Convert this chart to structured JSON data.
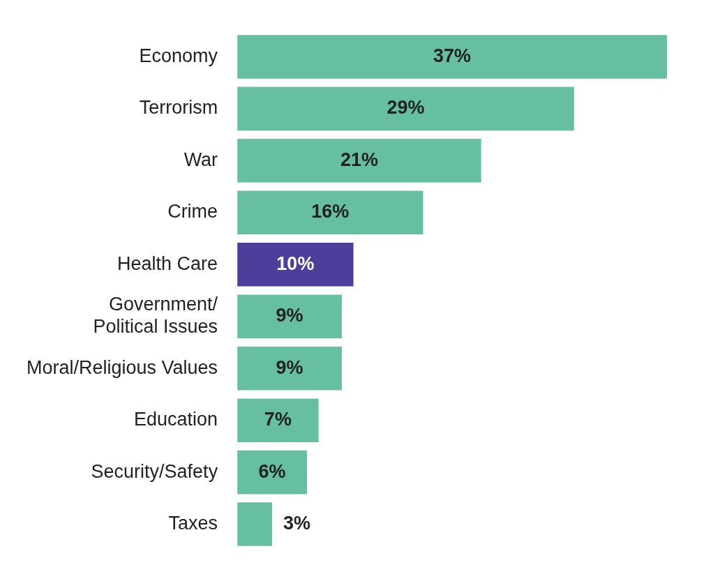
{
  "chart_data": {
    "type": "bar",
    "orientation": "horizontal",
    "categories": [
      "Economy",
      "Terrorism",
      "War",
      "Crime",
      "Health Care",
      "Government/\nPolitical Issues",
      "Moral/Religious Values",
      "Education",
      "Security/Safety",
      "Taxes"
    ],
    "values": [
      37,
      29,
      21,
      16,
      10,
      9,
      9,
      7,
      6,
      3
    ],
    "value_labels": [
      "37%",
      "29%",
      "21%",
      "16%",
      "10%",
      "9%",
      "9%",
      "7%",
      "6%",
      "3%"
    ],
    "colors": [
      "#66bfa0",
      "#66bfa0",
      "#66bfa0",
      "#66bfa0",
      "#4b3f9b",
      "#66bfa0",
      "#66bfa0",
      "#66bfa0",
      "#66bfa0",
      "#66bfa0"
    ],
    "tick_labels": "y",
    "legend": false
  }
}
